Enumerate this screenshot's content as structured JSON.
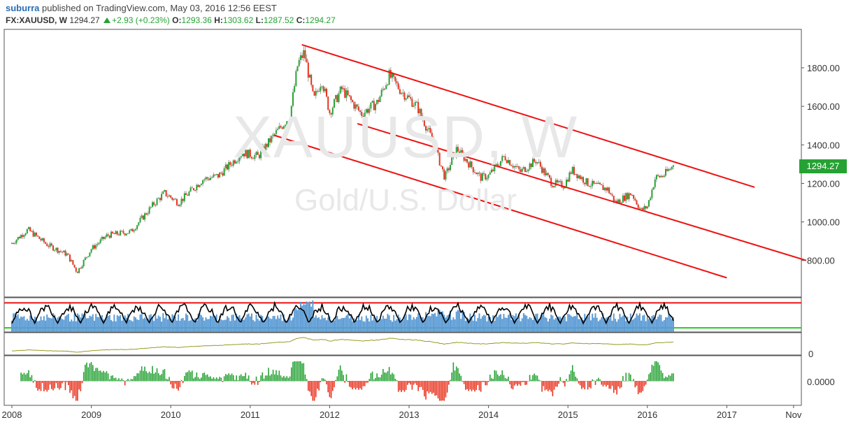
{
  "header": {
    "author": "suburra",
    "published_text": "published on TradingView.com, May 03, 2016 12:56 EEST",
    "symbol": "FX:XAUUSD, W",
    "last": "1294.27",
    "change": "+2.93 (+0.23%)",
    "open_label": "O:",
    "open": "1293.36",
    "high_label": "H:",
    "high": "1303.62",
    "low_label": "L:",
    "low": "1287.52",
    "close_label": "C:",
    "close": "1294.27"
  },
  "watermark": {
    "symbol": "XAUUSD, W",
    "description": "Gold/U.S. Dollar"
  },
  "price_tag": "1294.27",
  "colors": {
    "up": "#26a234",
    "down": "#e8321e",
    "channel": "#ee1111",
    "volume": "#5b9bd5",
    "osc_line": "#000000",
    "upper_band": "#ee1111",
    "lower_band": "#22cc22",
    "cumulative": "#9a9a22"
  },
  "chart_data": [
    {
      "type": "line",
      "subtype": "candlestick",
      "ylim": [
        600,
        1950
      ],
      "y_ticks": [
        "1800.00",
        "1600.00",
        "1400.00",
        "1200.00",
        "1000.00",
        "800.00"
      ],
      "x_ticks": [
        "2008",
        "2009",
        "2010",
        "2011",
        "2012",
        "2013",
        "2014",
        "2015",
        "2016",
        "2017",
        "Nov"
      ],
      "x": [
        2008.0,
        2008.2,
        2008.45,
        2008.7,
        2008.82,
        2009.0,
        2009.2,
        2009.5,
        2009.8,
        2009.92,
        2010.1,
        2010.4,
        2010.6,
        2010.9,
        2011.1,
        2011.3,
        2011.5,
        2011.6,
        2011.68,
        2011.8,
        2011.9,
        2012.0,
        2012.15,
        2012.4,
        2012.6,
        2012.75,
        2012.9,
        2013.1,
        2013.3,
        2013.45,
        2013.6,
        2013.72,
        2013.9,
        2014.0,
        2014.2,
        2014.4,
        2014.6,
        2014.8,
        2014.95,
        2015.05,
        2015.25,
        2015.5,
        2015.6,
        2015.8,
        2015.92,
        2016.0,
        2016.1,
        2016.2,
        2016.33
      ],
      "close": [
        890,
        960,
        880,
        830,
        740,
        860,
        930,
        950,
        1100,
        1150,
        1100,
        1220,
        1240,
        1360,
        1340,
        1450,
        1550,
        1820,
        1880,
        1630,
        1740,
        1570,
        1690,
        1560,
        1620,
        1760,
        1680,
        1600,
        1420,
        1230,
        1380,
        1320,
        1230,
        1240,
        1340,
        1260,
        1320,
        1200,
        1190,
        1270,
        1200,
        1170,
        1100,
        1150,
        1060,
        1080,
        1230,
        1240,
        1294
      ],
      "channel_lines": [
        {
          "from": [
            2011.65,
            1920
          ],
          "to": [
            2017.35,
            1180
          ]
        },
        {
          "from": [
            2012.35,
            1510
          ],
          "to": [
            2018.0,
            800
          ]
        },
        {
          "from": [
            2011.3,
            1450
          ],
          "to": [
            2017.0,
            710
          ]
        }
      ]
    },
    {
      "type": "area",
      "name": "volume-oscillator panel",
      "upper_band_level": 0.85,
      "lower_band_level": 0.12
    },
    {
      "type": "line",
      "name": "cumulative panel",
      "y_ticks": [
        "0"
      ]
    },
    {
      "type": "bar",
      "name": "histogram panel",
      "y_ticks": [
        "0.0000"
      ]
    }
  ]
}
